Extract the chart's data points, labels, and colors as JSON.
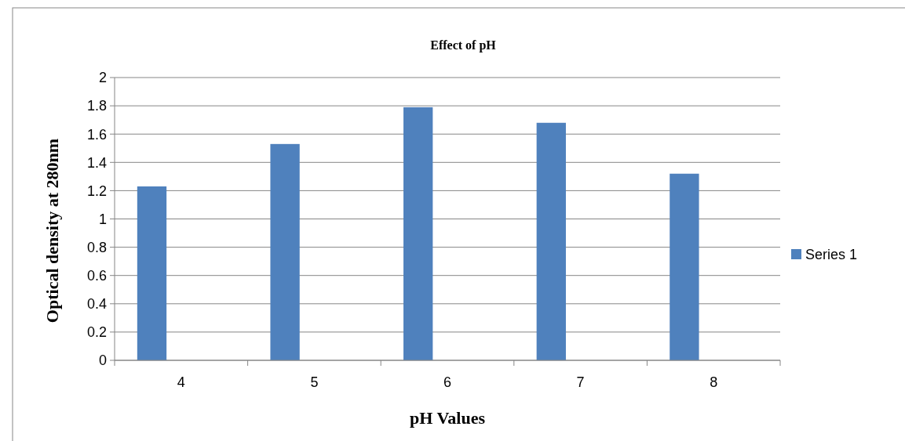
{
  "chart_data": {
    "type": "bar",
    "title": "Effect of pH",
    "xlabel": "pH Values",
    "ylabel": "Optical density at 280nm",
    "categories": [
      "4",
      "5",
      "6",
      "7",
      "8"
    ],
    "series": [
      {
        "name": "Series 1",
        "color": "#4f81bd",
        "values": [
          1.23,
          1.53,
          1.79,
          1.68,
          1.32
        ]
      }
    ],
    "ylim": [
      0,
      2
    ],
    "yticks": [
      0,
      {
        "value": 0.2,
        "label": "0.2"
      },
      {
        "value": 0.4,
        "label": "0.4"
      },
      {
        "value": 0.6,
        "label": "0.6"
      },
      {
        "value": 0.8,
        "label": "0.8"
      },
      1,
      {
        "value": 1.2,
        "label": "1.2"
      },
      {
        "value": 1.4,
        "label": "1.4"
      },
      {
        "value": 1.6,
        "label": "1.6"
      },
      {
        "value": 1.8,
        "label": "1.8"
      },
      2
    ],
    "grid": "y",
    "legend": "right"
  }
}
